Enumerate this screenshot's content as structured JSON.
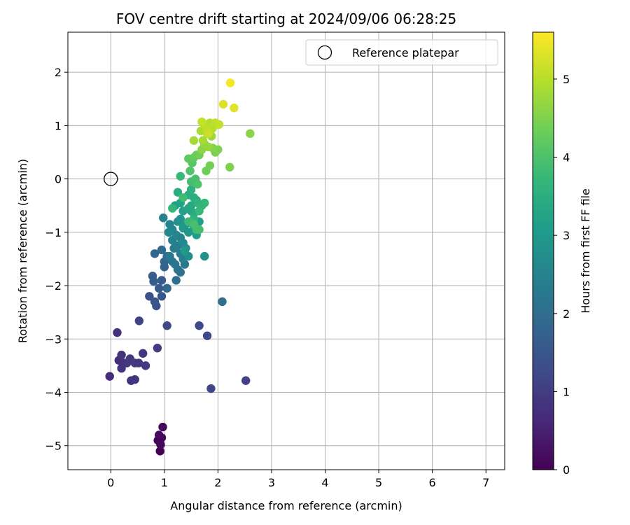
{
  "chart_data": {
    "type": "scatter",
    "title": "FOV centre drift starting at 2024/09/06 06:28:25",
    "xlabel": "Angular distance from reference (arcmin)",
    "ylabel": "Rotation from reference (arcmin)",
    "xlim": [
      -0.8,
      7.35
    ],
    "ylim": [
      -5.45,
      2.75
    ],
    "xticks": [
      "0",
      "1",
      "2",
      "3",
      "4",
      "5",
      "6",
      "7"
    ],
    "xtick_values": [
      0,
      1,
      2,
      3,
      4,
      5,
      6,
      7
    ],
    "yticks": [
      "−5",
      "−4",
      "−3",
      "−2",
      "−1",
      "0",
      "1",
      "2"
    ],
    "ytick_values": [
      -5,
      -4,
      -3,
      -2,
      -1,
      0,
      1,
      2
    ],
    "grid": true,
    "legend": {
      "placement": "upper-right",
      "entries": [
        {
          "label": "Reference platepar",
          "marker": "open-circle"
        }
      ]
    },
    "reference_point": {
      "x": 0,
      "y": 0
    },
    "colorbar": {
      "label": "Hours from first FF file",
      "range": [
        0,
        5.6
      ],
      "ticks": [
        "0",
        "1",
        "2",
        "3",
        "4",
        "5"
      ],
      "tick_values": [
        0,
        1,
        2,
        3,
        4,
        5
      ],
      "colormap": "viridis",
      "stops": [
        "#440154",
        "#482878",
        "#3e4a89",
        "#31688e",
        "#26828e",
        "#1f9e89",
        "#35b779",
        "#6ece58",
        "#b5de2b",
        "#fde725"
      ]
    },
    "points": [
      [
        0.92,
        -5.1,
        0.0
      ],
      [
        0.88,
        -4.9,
        0.05
      ],
      [
        0.95,
        -4.85,
        0.08
      ],
      [
        0.93,
        -4.98,
        0.1
      ],
      [
        0.97,
        -4.65,
        0.12
      ],
      [
        0.9,
        -4.8,
        0.15
      ],
      [
        -0.02,
        -3.7,
        0.7
      ],
      [
        0.12,
        -2.88,
        0.75
      ],
      [
        0.15,
        -3.4,
        0.72
      ],
      [
        0.2,
        -3.3,
        0.8
      ],
      [
        0.25,
        -3.45,
        0.85
      ],
      [
        0.2,
        -3.55,
        0.82
      ],
      [
        0.3,
        -3.45,
        0.9
      ],
      [
        0.36,
        -3.37,
        0.88
      ],
      [
        0.38,
        -3.78,
        0.85
      ],
      [
        0.45,
        -3.76,
        0.9
      ],
      [
        0.45,
        -3.45,
        0.95
      ],
      [
        0.52,
        -3.45,
        0.92
      ],
      [
        0.6,
        -3.27,
        0.9
      ],
      [
        0.65,
        -3.5,
        0.95
      ],
      [
        0.87,
        -3.17,
        1.0
      ],
      [
        0.53,
        -2.66,
        1.1
      ],
      [
        1.05,
        -2.75,
        1.2
      ],
      [
        1.65,
        -2.75,
        1.25
      ],
      [
        1.8,
        -2.94,
        1.2
      ],
      [
        1.87,
        -3.93,
        1.15
      ],
      [
        2.52,
        -3.78,
        1.1
      ],
      [
        0.72,
        -2.2,
        1.35
      ],
      [
        0.82,
        -2.3,
        1.4
      ],
      [
        0.85,
        -2.38,
        1.45
      ],
      [
        0.95,
        -2.2,
        1.5
      ],
      [
        0.9,
        -2.05,
        1.55
      ],
      [
        0.95,
        -1.9,
        1.6
      ],
      [
        0.78,
        -1.82,
        1.6
      ],
      [
        0.8,
        -1.92,
        1.65
      ],
      [
        1.0,
        -1.65,
        1.75
      ],
      [
        0.82,
        -1.4,
        1.85
      ],
      [
        0.95,
        -1.33,
        1.9
      ],
      [
        1.0,
        -1.55,
        1.8
      ],
      [
        1.05,
        -1.45,
        1.95
      ],
      [
        1.05,
        -2.05,
        1.9
      ],
      [
        1.22,
        -1.9,
        2.0
      ],
      [
        2.08,
        -2.3,
        2.0
      ],
      [
        1.15,
        -1.55,
        2.1
      ],
      [
        1.2,
        -1.6,
        2.2
      ],
      [
        1.25,
        -1.7,
        2.15
      ],
      [
        1.3,
        -1.75,
        2.1
      ],
      [
        1.38,
        -1.6,
        2.25
      ],
      [
        1.1,
        -1.45,
        2.25
      ],
      [
        1.18,
        -1.3,
        2.35
      ],
      [
        1.25,
        -1.25,
        2.4
      ],
      [
        1.15,
        -1.15,
        2.45
      ],
      [
        1.3,
        -1.4,
        2.3
      ],
      [
        1.35,
        -1.5,
        2.4
      ],
      [
        0.98,
        -0.73,
        2.5
      ],
      [
        1.1,
        -0.85,
        2.55
      ],
      [
        1.15,
        -0.95,
        2.6
      ],
      [
        1.08,
        -1.0,
        2.65
      ],
      [
        1.22,
        -1.05,
        2.55
      ],
      [
        1.3,
        -1.1,
        2.5
      ],
      [
        1.35,
        -1.2,
        2.65
      ],
      [
        1.45,
        -1.45,
        2.7
      ],
      [
        1.4,
        -1.3,
        2.75
      ],
      [
        1.75,
        -1.45,
        2.8
      ],
      [
        1.25,
        -0.8,
        2.85
      ],
      [
        1.3,
        -0.75,
        2.9
      ],
      [
        1.4,
        -0.85,
        2.95
      ],
      [
        1.35,
        -0.92,
        2.95
      ],
      [
        1.45,
        -1.0,
        3.0
      ],
      [
        1.38,
        -1.35,
        3.0
      ],
      [
        1.5,
        -0.6,
        3.05
      ],
      [
        1.55,
        -0.9,
        3.1
      ],
      [
        1.6,
        -1.05,
        3.1
      ],
      [
        1.65,
        -0.8,
        3.15
      ],
      [
        1.2,
        -0.5,
        3.15
      ],
      [
        1.3,
        -0.45,
        3.2
      ],
      [
        1.35,
        -0.6,
        3.2
      ],
      [
        1.45,
        -0.55,
        3.3
      ],
      [
        1.5,
        -0.5,
        3.35
      ],
      [
        1.6,
        -0.4,
        3.35
      ],
      [
        1.55,
        -0.65,
        3.4
      ],
      [
        1.25,
        -0.25,
        3.45
      ],
      [
        1.45,
        -0.3,
        3.45
      ],
      [
        1.55,
        -0.35,
        3.5
      ],
      [
        1.5,
        -0.2,
        3.55
      ],
      [
        1.62,
        -0.45,
        3.6
      ],
      [
        1.7,
        -0.5,
        3.65
      ],
      [
        1.75,
        -0.45,
        3.7
      ],
      [
        1.65,
        -0.6,
        3.75
      ],
      [
        1.55,
        -0.75,
        3.6
      ],
      [
        1.45,
        -0.8,
        3.8
      ],
      [
        1.6,
        -0.95,
        3.85
      ],
      [
        1.65,
        -0.95,
        3.9
      ],
      [
        1.55,
        -0.85,
        3.95
      ],
      [
        1.35,
        -0.35,
        3.85
      ],
      [
        1.5,
        -0.05,
        3.9
      ],
      [
        1.58,
        0.0,
        3.95
      ],
      [
        1.62,
        -0.1,
        4.0
      ],
      [
        1.15,
        -0.55,
        3.7
      ],
      [
        1.3,
        0.05,
        3.75
      ],
      [
        1.48,
        0.15,
        4.05
      ],
      [
        1.52,
        0.3,
        4.1
      ],
      [
        1.45,
        0.38,
        4.2
      ],
      [
        1.55,
        0.4,
        4.25
      ],
      [
        1.6,
        0.45,
        4.3
      ],
      [
        1.65,
        0.45,
        4.35
      ],
      [
        1.78,
        0.15,
        4.35
      ],
      [
        1.85,
        0.25,
        4.4
      ],
      [
        1.95,
        0.5,
        4.45
      ],
      [
        2.0,
        0.55,
        4.5
      ],
      [
        2.22,
        0.22,
        4.5
      ],
      [
        1.9,
        0.58,
        4.55
      ],
      [
        2.6,
        0.85,
        4.6
      ],
      [
        1.7,
        0.55,
        4.6
      ],
      [
        1.75,
        0.65,
        4.65
      ],
      [
        1.82,
        0.6,
        4.7
      ],
      [
        1.88,
        0.8,
        4.75
      ],
      [
        1.8,
        0.85,
        4.8
      ],
      [
        1.72,
        0.72,
        4.85
      ],
      [
        1.55,
        0.72,
        4.85
      ],
      [
        1.68,
        0.9,
        4.9
      ],
      [
        1.75,
        1.0,
        4.95
      ],
      [
        1.85,
        1.05,
        4.95
      ],
      [
        1.9,
        0.95,
        5.0
      ],
      [
        1.78,
        0.95,
        5.05
      ],
      [
        1.95,
        1.05,
        5.05
      ],
      [
        2.02,
        1.02,
        5.1
      ],
      [
        1.7,
        1.07,
        5.1
      ],
      [
        1.82,
        0.85,
        5.15
      ],
      [
        2.1,
        1.4,
        5.3
      ],
      [
        2.3,
        1.33,
        5.35
      ],
      [
        2.23,
        1.8,
        5.55
      ]
    ]
  }
}
